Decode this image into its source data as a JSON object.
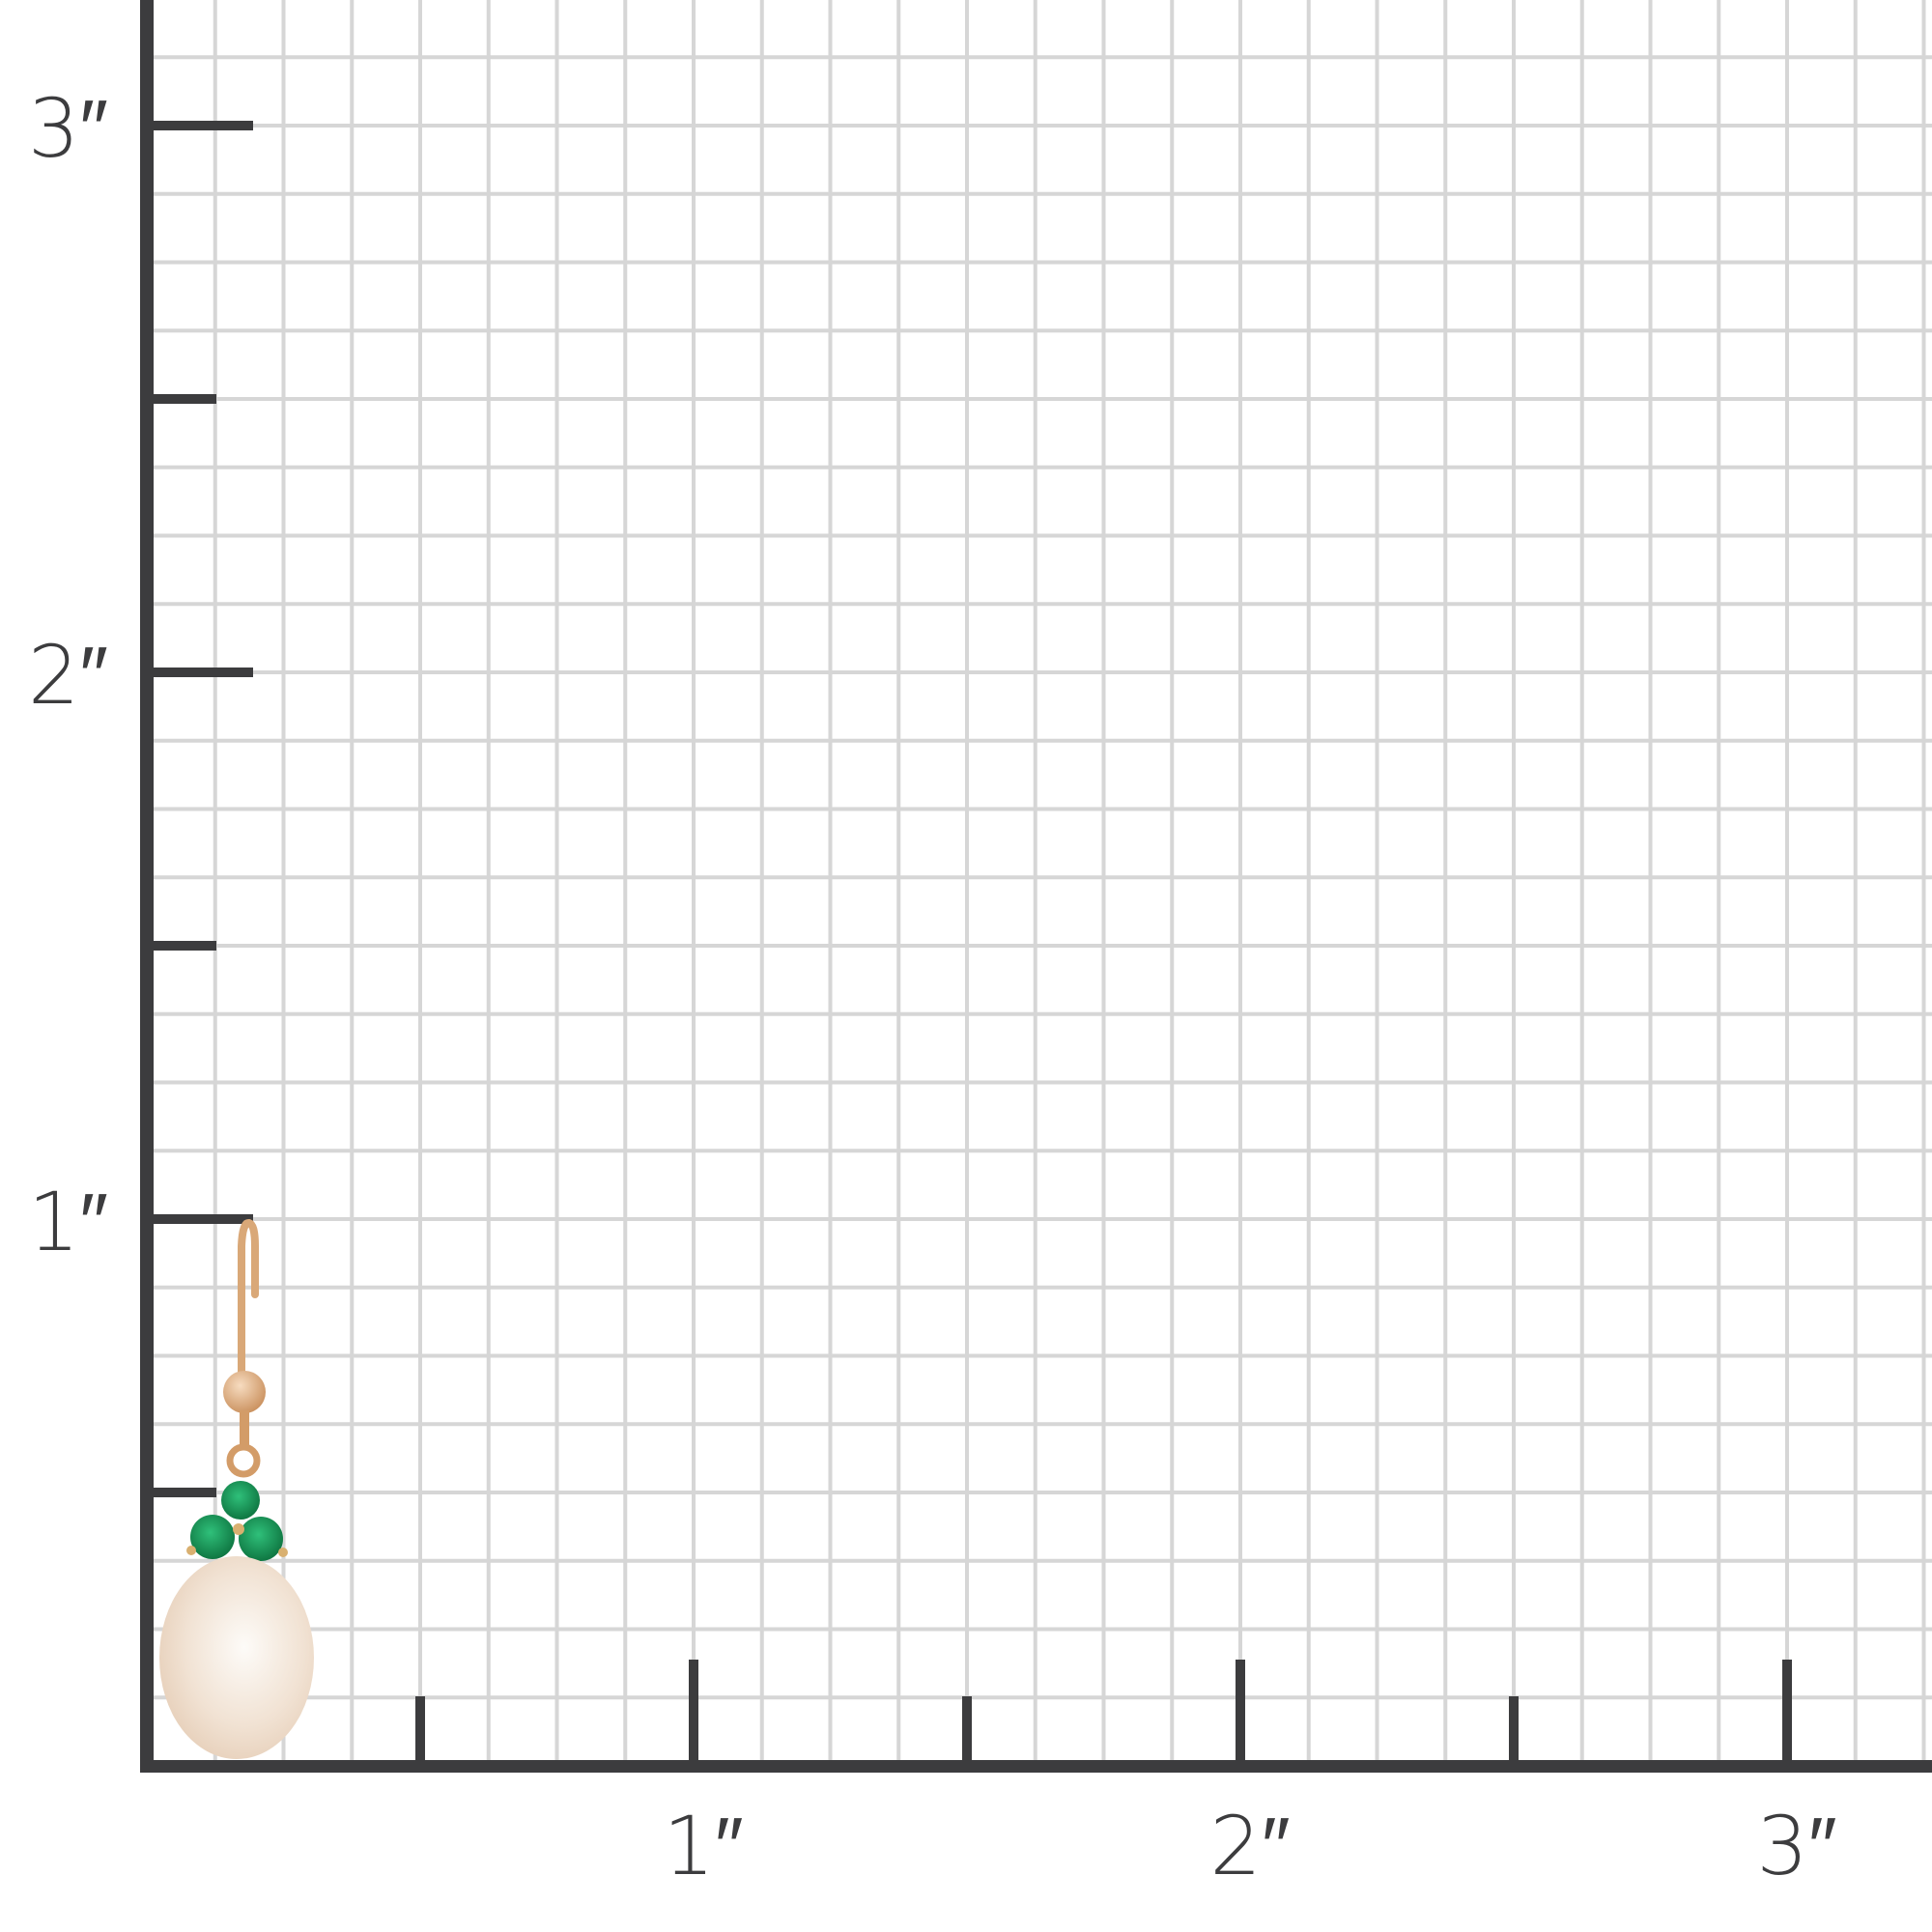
{
  "scale": {
    "unit": "inch",
    "y_labels": [
      "1″",
      "2″",
      "3″"
    ],
    "x_labels": [
      "1″",
      "2″",
      "3″"
    ],
    "grid_divisions_per_inch": 8,
    "minor_tick_every_inch": 0.5
  },
  "colors": {
    "axis": "#3c3c3e",
    "grid": "#d6d6d6",
    "gold": "#d9a878",
    "emerald": "#0f8a4a",
    "pearl": "#f3e6da"
  },
  "product": {
    "type": "pearl-drop-earring",
    "stones": "emerald"
  }
}
